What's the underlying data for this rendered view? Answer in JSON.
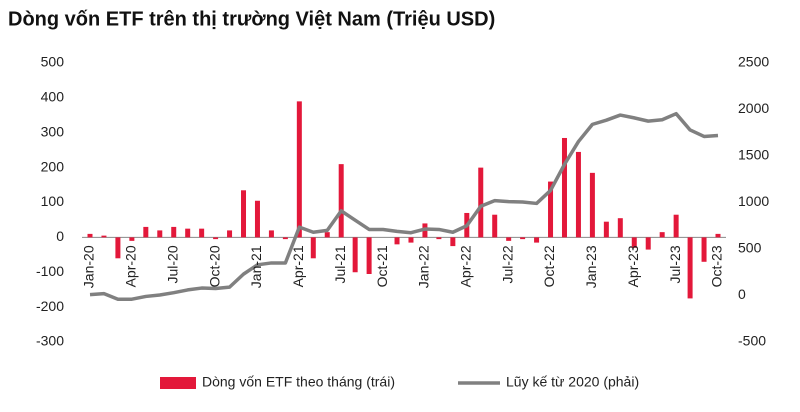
{
  "chart_data": {
    "type": "bar_line",
    "title": "Dòng vốn ETF trên thị trường Việt Nam (Triệu USD)",
    "categories": [
      "Jan-20",
      null,
      null,
      "Apr-20",
      null,
      null,
      "Jul-20",
      null,
      null,
      "Oct-20",
      null,
      null,
      "Jan-21",
      null,
      null,
      "Apr-21",
      null,
      null,
      "Jul-21",
      null,
      null,
      "Oct-21",
      null,
      null,
      "Jan-22",
      null,
      null,
      "Apr-22",
      null,
      null,
      "Jul-22",
      null,
      null,
      "Oct-22",
      null,
      null,
      "Jan-23",
      null,
      null,
      "Apr-23",
      null,
      null,
      "Jul-23",
      null,
      null,
      "Oct-23"
    ],
    "series": [
      {
        "name": "Dòng vốn ETF theo tháng (trái)",
        "color": "#e3183a",
        "kind": "bar",
        "values": [
          10,
          5,
          -60,
          -10,
          30,
          20,
          30,
          25,
          25,
          -5,
          20,
          135,
          105,
          20,
          -5,
          390,
          -60,
          15,
          210,
          -100,
          -105,
          0,
          -20,
          -15,
          40,
          -5,
          -25,
          70,
          200,
          65,
          -10,
          -5,
          -15,
          160,
          285,
          245,
          185,
          45,
          55,
          -30,
          -35,
          15,
          65,
          -175,
          -70,
          10
        ]
      },
      {
        "name": "Lũy kế từ 2020 (phải)",
        "color": "#808080",
        "kind": "line",
        "axis": "y2",
        "values": [
          10,
          20,
          -40,
          -40,
          -10,
          5,
          30,
          60,
          80,
          75,
          90,
          230,
          330,
          350,
          350,
          735,
          680,
          700,
          910,
          810,
          710,
          710,
          690,
          675,
          715,
          710,
          680,
          750,
          960,
          1020,
          1010,
          1005,
          990,
          1130,
          1410,
          1655,
          1840,
          1885,
          1940,
          1910,
          1875,
          1890,
          1955,
          1780,
          1710,
          1720
        ]
      }
    ],
    "ylim": [
      -300,
      500
    ],
    "yticks": [
      -300,
      -200,
      -100,
      0,
      100,
      200,
      300,
      400,
      500
    ],
    "y2lim": [
      -500,
      2500
    ],
    "y2ticks": [
      -500,
      0,
      500,
      1000,
      1500,
      2000,
      2500
    ],
    "legend": "bottom"
  }
}
